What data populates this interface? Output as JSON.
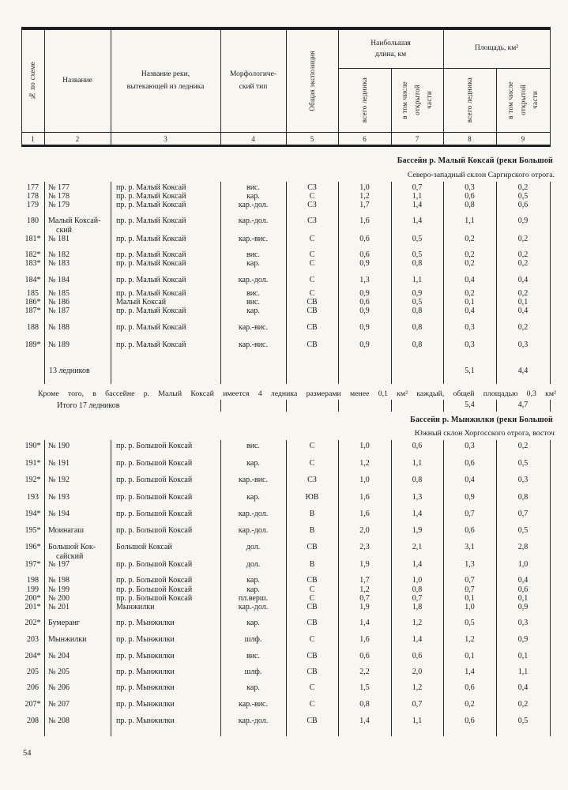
{
  "table": {
    "header": {
      "col_num_scheme": "№ по схеме",
      "col_name": "Название",
      "col_river_line1": "Название реки,",
      "col_river_line2": "вытекающей из ледника",
      "col_morph_line1": "Морфологиче-",
      "col_morph_line2": "ский тип",
      "col_exposure": "Общая экспозиция",
      "group_length_line1": "Наибольшая",
      "group_length_line2": "длина, км",
      "group_area": "Площадь, км²",
      "sub_total_glacier": "всего ледника",
      "sub_open_line1": "в том числе",
      "sub_open_line2": "открытой",
      "sub_open_line3": "части"
    },
    "column_numbers": [
      "1",
      "2",
      "3",
      "4",
      "5",
      "6",
      "7",
      "8",
      "9"
    ]
  },
  "sections": [
    {
      "title": "Бассейн р. Малый Коксай (реки Большой",
      "subtitle": "Северо-западный склон Саргирского отрога.",
      "rows": [
        {
          "num": "177",
          "name": "№ 177",
          "river": "пр. р. Малый Коксай",
          "type": "вис.",
          "exp": "СЗ",
          "len_total": "1,0",
          "len_open": "0,7",
          "area_total": "0,3",
          "area_open": "0,2"
        },
        {
          "num": "178",
          "name": "№ 178",
          "river": "пр. р. Малый Коксай",
          "type": "кар.",
          "exp": "С",
          "len_total": "1,2",
          "len_open": "1,1",
          "area_total": "0,6",
          "area_open": "0,5"
        },
        {
          "num": "179",
          "name": "№ 179",
          "river": "пр. р. Малый Коксай",
          "type": "кар.-дол.",
          "exp": "СЗ",
          "len_total": "1,7",
          "len_open": "1,4",
          "area_total": "0,8",
          "area_open": "0,6"
        },
        {
          "num": "180",
          "name": "Малый Коксай-",
          "name2": "ский",
          "river": "пр. р. Малый Коксай",
          "type": "кар.-дол.",
          "exp": "СЗ",
          "len_total": "1,6",
          "len_open": "1,4",
          "area_total": "1,1",
          "area_open": "0,9"
        },
        {
          "num": "181*",
          "name": "№ 181",
          "river": "пр. р. Малый Коксай",
          "type": "кар.-вис.",
          "exp": "С",
          "len_total": "0,6",
          "len_open": "0,5",
          "area_total": "0,2",
          "area_open": "0,2"
        },
        {
          "num": "182*",
          "name": "№ 182",
          "river": "пр. р. Малый Коксай",
          "type": "вис.",
          "exp": "С",
          "len_total": "0,6",
          "len_open": "0,5",
          "area_total": "0,2",
          "area_open": "0,2"
        },
        {
          "num": "183*",
          "name": "№ 183",
          "river": "пр. р. Малый Коксай",
          "type": "кар.",
          "exp": "С",
          "len_total": "0,9",
          "len_open": "0,8",
          "area_total": "0,2",
          "area_open": "0,2"
        },
        {
          "num": "184*",
          "name": "№ 184",
          "river": "пр. р. Малый Коксай",
          "type": "кар.-дол.",
          "exp": "С",
          "len_total": "1,3",
          "len_open": "1,1",
          "area_total": "0,4",
          "area_open": "0,4"
        },
        {
          "num": "185",
          "name": "№ 185",
          "river": "пр. р. Малый Коксай",
          "type": "вис.",
          "exp": "С",
          "len_total": "0,9",
          "len_open": "0,9",
          "area_total": "0,2",
          "area_open": "0,2"
        },
        {
          "num": "186*",
          "name": "№ 186",
          "river": "Малый Коксай",
          "type": "вис.",
          "exp": "СВ",
          "len_total": "0,6",
          "len_open": "0,5",
          "area_total": "0,1",
          "area_open": "0,1"
        },
        {
          "num": "187*",
          "name": "№ 187",
          "river": "пр. р. Малый Коксай",
          "type": "кар.",
          "exp": "СВ",
          "len_total": "0,9",
          "len_open": "0,8",
          "area_total": "0,4",
          "area_open": "0,4"
        },
        {
          "num": "188",
          "name": "№ 188",
          "river": "пр. р. Малый Коксай",
          "type": "кар.-вис.",
          "exp": "СВ",
          "len_total": "0,9",
          "len_open": "0,8",
          "area_total": "0,3",
          "area_open": "0,2"
        },
        {
          "num": "189*",
          "name": "№ 189",
          "river": "пр. р. Малый Коксай",
          "type": "кар.-вис.",
          "exp": "СВ",
          "len_total": "0,9",
          "len_open": "0,8",
          "area_total": "0,3",
          "area_open": "0,3"
        }
      ],
      "summary": {
        "label": "13 ледников",
        "area_total": "5,1",
        "area_open": "4,4"
      },
      "note": "Кроме того, в бассейне р. Малый Коксай имеется 4 ледника размерами менее 0,1 км² каждый, общей площадью 0,3 км²",
      "total": {
        "label": "Итого 17 ледников",
        "area_total": "5,4",
        "area_open": "4,7"
      }
    },
    {
      "title": "Бассейн р. Мынжилки (реки Большой",
      "subtitle": "Южный склон Хоргосского отрога, восточ",
      "rows": [
        {
          "num": "190*",
          "name": "№ 190",
          "river": "пр. р. Большой Коксай",
          "type": "вис.",
          "exp": "С",
          "len_total": "1,0",
          "len_open": "0,6",
          "area_total": "0,3",
          "area_open": "0,2"
        },
        {
          "num": "191*",
          "name": "№ 191",
          "river": "пр. р. Большой Коксай",
          "type": "кар.",
          "exp": "С",
          "len_total": "1,2",
          "len_open": "1,1",
          "area_total": "0,6",
          "area_open": "0,5"
        },
        {
          "num": "192*",
          "name": "№ 192",
          "river": "пр. р. Большой Коксай",
          "type": "кар.-вис.",
          "exp": "СЗ",
          "len_total": "1,0",
          "len_open": "0,8",
          "area_total": "0,4",
          "area_open": "0,3"
        },
        {
          "num": "193",
          "name": "№ 193",
          "river": "пр. р. Большой Коксай",
          "type": "кар.",
          "exp": "ЮВ",
          "len_total": "1,6",
          "len_open": "1,3",
          "area_total": "0,9",
          "area_open": "0,8"
        },
        {
          "num": "194*",
          "name": "№ 194",
          "river": "пр. р. Большой Коксай",
          "type": "кар.-дол.",
          "exp": "В",
          "len_total": "1,6",
          "len_open": "1,4",
          "area_total": "0,7",
          "area_open": "0,7"
        },
        {
          "num": "195*",
          "name": "Моинагаш",
          "river": "пр. р. Большой Коксай",
          "type": "кар.-дол.",
          "exp": "В",
          "len_total": "2,0",
          "len_open": "1,9",
          "area_total": "0,6",
          "area_open": "0,5"
        },
        {
          "num": "196*",
          "name": "Большой Кок-",
          "name2": "сайский",
          "river": "Большой Коксай",
          "type": "дол.",
          "exp": "СВ",
          "len_total": "2,3",
          "len_open": "2,1",
          "area_total": "3,1",
          "area_open": "2,8"
        },
        {
          "num": "197*",
          "name": "№ 197",
          "river": "пр. р. Большой Коксай",
          "type": "дол.",
          "exp": "В",
          "len_total": "1,9",
          "len_open": "1,4",
          "area_total": "1,3",
          "area_open": "1,0"
        },
        {
          "num": "198",
          "name": "№ 198",
          "river": "пр. р. Большой Коксай",
          "type": "кар.",
          "exp": "СВ",
          "len_total": "1,7",
          "len_open": "1,0",
          "area_total": "0,7",
          "area_open": "0,4"
        },
        {
          "num": "199",
          "name": "№ 199",
          "river": "пр. р. Большой Коксай",
          "type": "кар.",
          "exp": "С",
          "len_total": "1,2",
          "len_open": "0,8",
          "area_total": "0,7",
          "area_open": "0,6"
        },
        {
          "num": "200*",
          "name": "№ 200",
          "river": "пр. р. Большой Коксай",
          "type": "пл.верш.",
          "exp": "С",
          "len_total": "0,7",
          "len_open": "0,7",
          "area_total": "0,1",
          "area_open": "0,1"
        },
        {
          "num": "201*",
          "name": "№ 201",
          "river": "Мынжилки",
          "type": "кар.-дол.",
          "exp": "СВ",
          "len_total": "1,9",
          "len_open": "1,8",
          "area_total": "1,0",
          "area_open": "0,9"
        },
        {
          "num": "202*",
          "name": "Бумеранг",
          "river": "пр. р. Мынжилки",
          "type": "кар.",
          "exp": "СВ",
          "len_total": "1,4",
          "len_open": "1,2",
          "area_total": "0,5",
          "area_open": "0,3"
        },
        {
          "num": "203",
          "name": "Мынжилки",
          "river": "пр. р. Мынжилки",
          "type": "шлф.",
          "exp": "С",
          "len_total": "1,6",
          "len_open": "1,4",
          "area_total": "1,2",
          "area_open": "0,9"
        },
        {
          "num": "204*",
          "name": "№ 204",
          "river": "пр. р. Мынжилки",
          "type": "вис.",
          "exp": "СВ",
          "len_total": "0,6",
          "len_open": "0,6",
          "area_total": "0,1",
          "area_open": "0,1"
        },
        {
          "num": "205",
          "name": "№ 205",
          "river": "пр. р. Мынжилки",
          "type": "шлф.",
          "exp": "СВ",
          "len_total": "2,2",
          "len_open": "2,0",
          "area_total": "1,4",
          "area_open": "1,1"
        },
        {
          "num": "206",
          "name": "№ 206",
          "river": "пр. р. Мынжилки",
          "type": "кар.",
          "exp": "С",
          "len_total": "1,5",
          "len_open": "1,2",
          "area_total": "0,6",
          "area_open": "0,4"
        },
        {
          "num": "207*",
          "name": "№ 207",
          "river": "пр. р. Мынжилки",
          "type": "кар.-вис.",
          "exp": "С",
          "len_total": "0,8",
          "len_open": "0,7",
          "area_total": "0,2",
          "area_open": "0,2"
        },
        {
          "num": "208",
          "name": "№ 208",
          "river": "пр. р. Мынжилки",
          "type": "кар.-дол.",
          "exp": "СВ",
          "len_total": "1,4",
          "len_open": "1,1",
          "area_total": "0,6",
          "area_open": "0,5"
        }
      ]
    }
  ],
  "page_number": "54"
}
